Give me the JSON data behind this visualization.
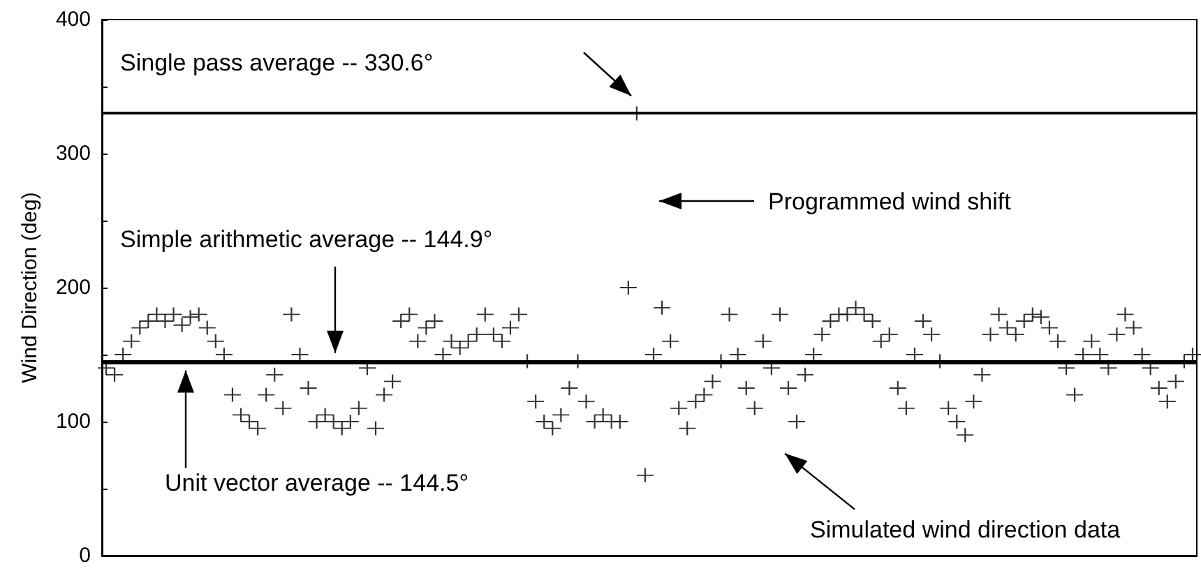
{
  "chart_data": {
    "type": "scatter",
    "ylabel": "Wind Direction (deg)",
    "categories": [
      null,
      null,
      null,
      null,
      null,
      null,
      null,
      null,
      null,
      null,
      null,
      null,
      null,
      null,
      null,
      null,
      null,
      null,
      null,
      null,
      null,
      null,
      null,
      null,
      null,
      null,
      null,
      null,
      null,
      null,
      null,
      null,
      null,
      null,
      null,
      null,
      null,
      null,
      null,
      null,
      null,
      null,
      null,
      null,
      null,
      null,
      null,
      null,
      null,
      null,
      null,
      null,
      null,
      null,
      null,
      null,
      null,
      null,
      null,
      null,
      null,
      null,
      null,
      null,
      null,
      null,
      null,
      null,
      null,
      null,
      null,
      null,
      null,
      null,
      null,
      null,
      null,
      null,
      null,
      null,
      null,
      null,
      null,
      null,
      null,
      null,
      null,
      null,
      null,
      null,
      null,
      null,
      null,
      null,
      null,
      null,
      null,
      null,
      null,
      null,
      null,
      null,
      null,
      null,
      null,
      null,
      null,
      null,
      null,
      null,
      null,
      null,
      null,
      null,
      null,
      null,
      null,
      null,
      null,
      null,
      null,
      null,
      null,
      null,
      null,
      null,
      null,
      null,
      null,
      null
    ],
    "series": [
      {
        "color": "#000000",
        "values": [
          140,
          135,
          150,
          160,
          170,
          175,
          180,
          175,
          180,
          172,
          178,
          180,
          170,
          160,
          150,
          120,
          105,
          100,
          95,
          120,
          135,
          110,
          180,
          150,
          125,
          100,
          105,
          100,
          95,
          100,
          110,
          140,
          95,
          120,
          130,
          175,
          180,
          160,
          170,
          175,
          150,
          160,
          155,
          160,
          165,
          180,
          165,
          160,
          170,
          180,
          145,
          115,
          100,
          95,
          105,
          125,
          145,
          115,
          100,
          105,
          100,
          100,
          200,
          330,
          60,
          150,
          185,
          160,
          110,
          95,
          115,
          120,
          130,
          145,
          180,
          150,
          125,
          110,
          160,
          140,
          180,
          125,
          100,
          135,
          150,
          165,
          175,
          180,
          180,
          185,
          180,
          175,
          160,
          165,
          125,
          110,
          150,
          175,
          165,
          145,
          110,
          100,
          90,
          115,
          135,
          165,
          180,
          170,
          165,
          175,
          180,
          178,
          170,
          160,
          140,
          120,
          150,
          160,
          150,
          140,
          165,
          180,
          170,
          150,
          140,
          125,
          115,
          130,
          145,
          150
        ]
      }
    ],
    "marker": "cross",
    "ylim": [
      0,
      400
    ],
    "yticks": [
      0,
      {
        "value": 50,
        "label": null
      },
      100,
      {
        "value": 150,
        "label": null
      },
      200,
      {
        "value": 250,
        "label": null
      },
      300,
      {
        "value": 350,
        "label": null
      },
      400
    ],
    "tick_labels": "y",
    "grid": false,
    "ref_lines": [
      {
        "axis": "y",
        "value": 330.6,
        "label": "Single pass average -- 330.6°",
        "color": "#000000"
      },
      {
        "axis": "y",
        "value": 144.9,
        "label": "Simple arithmetic average -- 144.9°",
        "color": "#000000"
      },
      {
        "axis": "y",
        "value": 144.5,
        "label": "Unit vector average -- 144.5°",
        "color": "#000000"
      }
    ],
    "annotations": [
      "Programmed wind shift",
      "Simulated wind direction data"
    ]
  }
}
